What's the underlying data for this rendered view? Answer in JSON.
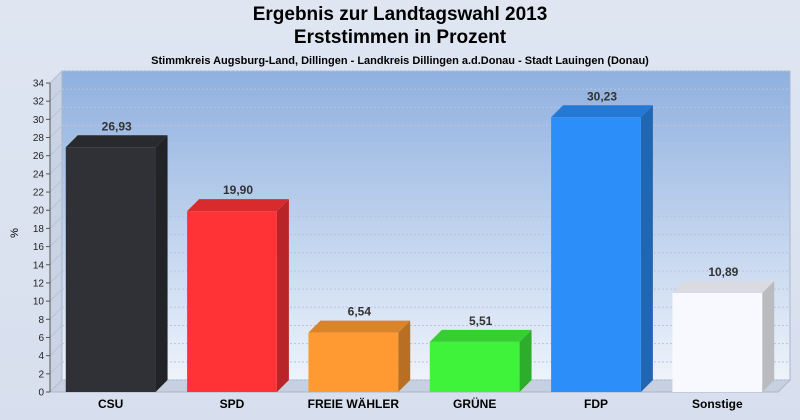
{
  "chart_data": {
    "type": "bar",
    "title": "Ergebnis zur Landtagswahl 2013",
    "title_line2": "Erststimmen in Prozent",
    "subtitle": "Stimmkreis Augsburg-Land, Dillingen - Landkreis Dillingen a.d.Donau - Stadt Lauingen (Donau)",
    "ylabel": "%",
    "ylim": [
      0,
      34
    ],
    "yticks": [
      0,
      2,
      4,
      6,
      8,
      10,
      12,
      14,
      16,
      18,
      20,
      22,
      24,
      26,
      28,
      30,
      32,
      34
    ],
    "grid": true,
    "categories": [
      "CSU",
      "SPD",
      "FREIE WÄHLER",
      "GRÜNE",
      "FDP",
      "Sonstige"
    ],
    "values": [
      26.93,
      19.9,
      6.54,
      5.51,
      30.23,
      10.89
    ],
    "value_labels": [
      "26,93",
      "19,90",
      "6,54",
      "5,51",
      "30,23",
      "10,89"
    ],
    "colors": [
      "#2f3136",
      "#ff3236",
      "#ff9a32",
      "#3ff23a",
      "#2c8ef8",
      "#f7f9ff"
    ]
  }
}
